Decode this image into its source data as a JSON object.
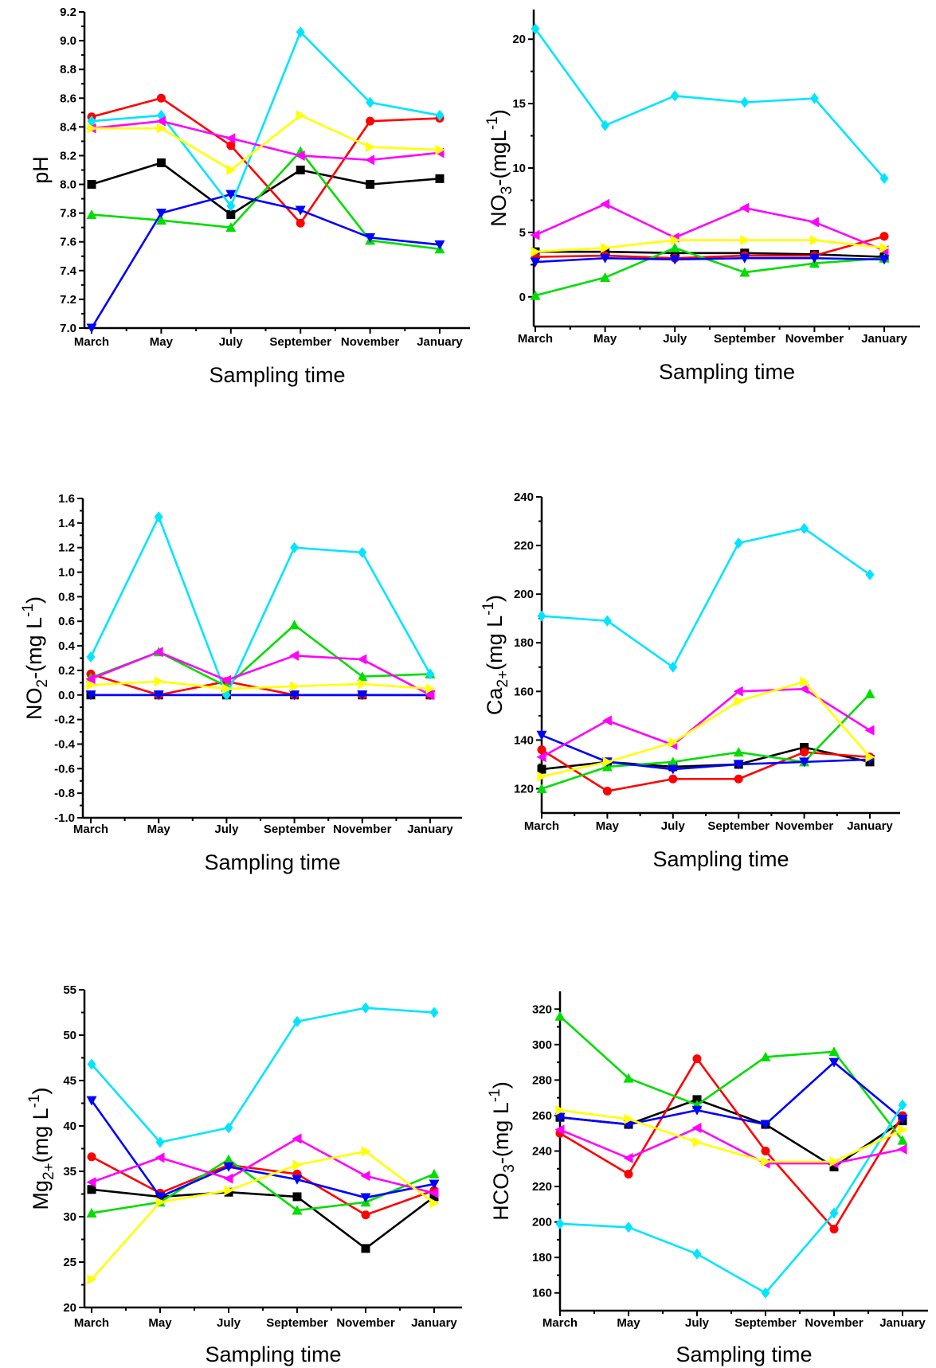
{
  "x_axis_title": "Sampling time",
  "chart_data": [
    {
      "id": "ph",
      "type": "line",
      "ylabel": "pH",
      "ylim": [
        7.0,
        9.2
      ],
      "yticks": [
        "7.0",
        "7.2",
        "7.4",
        "7.6",
        "7.8",
        "8.0",
        "8.2",
        "8.4",
        "8.6",
        "8.8",
        "9.0",
        "9.2"
      ],
      "categories": [
        "March",
        "May",
        "July",
        "September",
        "November",
        "January"
      ],
      "series": [
        {
          "color": "#000000",
          "marker": "square",
          "values": [
            8.0,
            8.15,
            7.79,
            8.1,
            8.0,
            8.04
          ]
        },
        {
          "color": "#ff0000",
          "marker": "circle",
          "values": [
            8.47,
            8.6,
            8.27,
            7.73,
            8.44,
            8.46
          ]
        },
        {
          "color": "#00dd00",
          "marker": "triangle-up",
          "values": [
            7.79,
            7.75,
            7.7,
            8.23,
            7.61,
            7.55
          ]
        },
        {
          "color": "#0000ff",
          "marker": "triangle-down",
          "values": [
            7.0,
            7.8,
            7.93,
            7.82,
            7.63,
            7.58
          ]
        },
        {
          "color": "#00e5ff",
          "marker": "diamond",
          "values": [
            8.44,
            8.48,
            7.85,
            9.06,
            8.57,
            8.48
          ]
        },
        {
          "color": "#ff00ff",
          "marker": "triangle-left",
          "values": [
            8.39,
            8.44,
            8.32,
            8.2,
            8.17,
            8.22
          ]
        },
        {
          "color": "#ffff00",
          "marker": "triangle-right",
          "values": [
            8.39,
            8.39,
            8.1,
            8.48,
            8.26,
            8.24
          ]
        }
      ]
    },
    {
      "id": "no3",
      "type": "line",
      "ylabel_main": "NO",
      "ylabel_sub": "3",
      "ylabel_rest": "-(mgL",
      "ylabel_sup": "-1",
      "ylabel_end": ")",
      "ylim": [
        -2.3,
        22.3
      ],
      "yticks": [
        "0",
        "5",
        "10",
        "15",
        "20"
      ],
      "categories": [
        "March",
        "May",
        "July",
        "September",
        "November",
        "January"
      ],
      "series": [
        {
          "color": "#000000",
          "marker": "square",
          "values": [
            3.5,
            3.5,
            3.4,
            3.4,
            3.3,
            3.1
          ]
        },
        {
          "color": "#ff0000",
          "marker": "circle",
          "values": [
            3.1,
            3.2,
            3.0,
            3.2,
            3.2,
            4.7
          ]
        },
        {
          "color": "#00dd00",
          "marker": "triangle-up",
          "values": [
            0.1,
            1.5,
            3.8,
            1.9,
            2.6,
            3.0
          ]
        },
        {
          "color": "#0000ff",
          "marker": "triangle-down",
          "values": [
            2.7,
            3.0,
            2.9,
            3.0,
            3.0,
            2.9
          ]
        },
        {
          "color": "#00e5ff",
          "marker": "diamond",
          "values": [
            20.8,
            13.3,
            15.6,
            15.1,
            15.4,
            9.2
          ]
        },
        {
          "color": "#ff00ff",
          "marker": "triangle-left",
          "values": [
            4.8,
            7.2,
            4.6,
            6.9,
            5.8,
            3.6
          ]
        },
        {
          "color": "#ffff00",
          "marker": "triangle-right",
          "values": [
            3.5,
            3.8,
            4.4,
            4.4,
            4.4,
            3.8
          ]
        }
      ]
    },
    {
      "id": "no2",
      "type": "line",
      "ylabel_main": "NO",
      "ylabel_sub": "2",
      "ylabel_rest": "-(mg L",
      "ylabel_sup": "-1",
      "ylabel_end": ")",
      "ylim": [
        -1.0,
        1.6
      ],
      "yticks": [
        "-1.0",
        "-0.8",
        "-0.6",
        "-0.4",
        "-0.2",
        "0.0",
        "0.2",
        "0.4",
        "0.6",
        "0.8",
        "1.0",
        "1.2",
        "1.4",
        "1.6"
      ],
      "categories": [
        "March",
        "May",
        "July",
        "September",
        "November",
        "January"
      ],
      "series": [
        {
          "color": "#000000",
          "marker": "square",
          "values": [
            0.0,
            0.0,
            0.0,
            0.0,
            0.0,
            0.0
          ]
        },
        {
          "color": "#ff0000",
          "marker": "circle",
          "values": [
            0.17,
            0.0,
            0.11,
            0.0,
            0.0,
            0.0
          ]
        },
        {
          "color": "#00dd00",
          "marker": "triangle-up",
          "values": [
            0.14,
            0.35,
            0.07,
            0.57,
            0.15,
            0.17
          ]
        },
        {
          "color": "#0000ff",
          "marker": "triangle-down",
          "values": [
            0.0,
            0.0,
            0.0,
            0.0,
            0.0,
            0.0
          ]
        },
        {
          "color": "#00e5ff",
          "marker": "diamond",
          "values": [
            0.31,
            1.45,
            0.0,
            1.2,
            1.16,
            0.17
          ]
        },
        {
          "color": "#ff00ff",
          "marker": "triangle-left",
          "values": [
            0.13,
            0.35,
            0.12,
            0.32,
            0.29,
            0.0
          ]
        },
        {
          "color": "#ffff00",
          "marker": "triangle-right",
          "values": [
            0.08,
            0.11,
            0.05,
            0.07,
            0.09,
            0.05
          ]
        }
      ]
    },
    {
      "id": "ca",
      "type": "line",
      "ylabel_main": "Ca",
      "ylabel_sub": "2+",
      "ylabel_rest": "(mg L",
      "ylabel_sup": "-1",
      "ylabel_end": ")",
      "ylim": [
        110,
        240
      ],
      "yticks": [
        "120",
        "140",
        "160",
        "180",
        "200",
        "220",
        "240"
      ],
      "categories": [
        "March",
        "May",
        "July",
        "September",
        "November",
        "January"
      ],
      "series": [
        {
          "color": "#000000",
          "marker": "square",
          "values": [
            128,
            131,
            129,
            130,
            137,
            131
          ]
        },
        {
          "color": "#ff0000",
          "marker": "circle",
          "values": [
            136,
            119,
            124,
            124,
            135,
            133
          ]
        },
        {
          "color": "#00dd00",
          "marker": "triangle-up",
          "values": [
            120,
            129,
            131,
            135,
            131,
            159
          ]
        },
        {
          "color": "#0000ff",
          "marker": "triangle-down",
          "values": [
            142,
            131,
            128,
            130,
            131,
            132
          ]
        },
        {
          "color": "#00e5ff",
          "marker": "diamond",
          "values": [
            191,
            189,
            170,
            221,
            227,
            208
          ]
        },
        {
          "color": "#ff00ff",
          "marker": "triangle-left",
          "values": [
            133,
            148,
            138,
            160,
            161,
            144
          ]
        },
        {
          "color": "#ffff00",
          "marker": "triangle-right",
          "values": [
            125,
            131,
            139,
            156,
            164,
            133
          ]
        }
      ]
    },
    {
      "id": "mg",
      "type": "line",
      "ylabel_main": "Mg",
      "ylabel_sub": "2+",
      "ylabel_rest": "(mg L",
      "ylabel_sup": "-1",
      "ylabel_end": ")",
      "ylim": [
        20,
        55
      ],
      "yticks": [
        "20",
        "25",
        "30",
        "35",
        "40",
        "45",
        "50",
        "55"
      ],
      "categories": [
        "March",
        "May",
        "July",
        "September",
        "November",
        "January"
      ],
      "series": [
        {
          "color": "#000000",
          "marker": "square",
          "values": [
            33.0,
            32.2,
            32.7,
            32.2,
            26.5,
            32.2
          ]
        },
        {
          "color": "#ff0000",
          "marker": "circle",
          "values": [
            36.6,
            32.6,
            35.7,
            34.7,
            30.2,
            32.9
          ]
        },
        {
          "color": "#00dd00",
          "marker": "triangle-up",
          "values": [
            30.4,
            31.6,
            36.3,
            30.7,
            31.6,
            34.7
          ]
        },
        {
          "color": "#0000ff",
          "marker": "triangle-down",
          "values": [
            42.8,
            32.2,
            35.5,
            34.1,
            32.1,
            33.6
          ]
        },
        {
          "color": "#00e5ff",
          "marker": "diamond",
          "values": [
            46.8,
            38.2,
            39.8,
            51.5,
            53.0,
            52.5
          ]
        },
        {
          "color": "#ff00ff",
          "marker": "triangle-left",
          "values": [
            33.8,
            36.5,
            34.2,
            38.6,
            34.5,
            32.6
          ]
        },
        {
          "color": "#ffff00",
          "marker": "triangle-right",
          "values": [
            23.1,
            31.6,
            32.9,
            35.7,
            37.2,
            31.5
          ]
        }
      ]
    },
    {
      "id": "hco3",
      "type": "line",
      "ylabel_main": "HCO",
      "ylabel_sub": "3",
      "ylabel_rest": "-(mg L",
      "ylabel_sup": "-1",
      "ylabel_end": ")",
      "ylim": [
        150,
        330
      ],
      "yticks": [
        "160",
        "180",
        "200",
        "220",
        "240",
        "260",
        "280",
        "300",
        "320"
      ],
      "categories": [
        "March",
        "May",
        "July",
        "September",
        "November",
        "January"
      ],
      "series": [
        {
          "color": "#000000",
          "marker": "square",
          "values": [
            259,
            255,
            269,
            255,
            231,
            257
          ]
        },
        {
          "color": "#ff0000",
          "marker": "circle",
          "values": [
            250,
            227,
            292,
            240,
            196,
            260
          ]
        },
        {
          "color": "#00dd00",
          "marker": "triangle-up",
          "values": [
            316,
            281,
            266,
            293,
            296,
            246
          ]
        },
        {
          "color": "#0000ff",
          "marker": "triangle-down",
          "values": [
            259,
            255,
            263,
            255,
            290,
            258
          ]
        },
        {
          "color": "#00e5ff",
          "marker": "diamond",
          "values": [
            199,
            197,
            182,
            160,
            205,
            266
          ]
        },
        {
          "color": "#ff00ff",
          "marker": "triangle-left",
          "values": [
            252,
            236,
            253,
            233,
            233,
            241
          ]
        },
        {
          "color": "#ffff00",
          "marker": "triangle-right",
          "values": [
            263,
            258,
            245,
            234,
            234,
            252
          ]
        }
      ]
    }
  ]
}
